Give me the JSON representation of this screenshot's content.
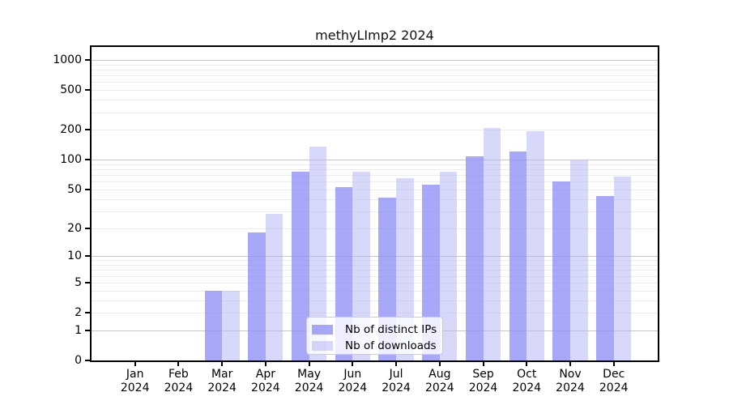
{
  "title": "methyLImp2 2024",
  "legend": {
    "items": [
      {
        "label": "Nb of distinct IPs"
      },
      {
        "label": "Nb of downloads"
      }
    ]
  },
  "chart_data": {
    "type": "bar",
    "title": "methyLImp2 2024",
    "categories": [
      "Jan 2024",
      "Feb 2024",
      "Mar 2024",
      "Apr 2024",
      "May 2024",
      "Jun 2024",
      "Jul 2024",
      "Aug 2024",
      "Sep 2024",
      "Oct 2024",
      "Nov 2024",
      "Dec 2024"
    ],
    "x_tick_line1": [
      "Jan",
      "Feb",
      "Mar",
      "Apr",
      "May",
      "Jun",
      "Jul",
      "Aug",
      "Sep",
      "Oct",
      "Nov",
      "Dec"
    ],
    "x_tick_line2": "2024",
    "series": [
      {
        "name": "Nb of distinct IPs",
        "values": [
          0,
          0,
          4,
          18,
          76,
          53,
          41,
          56,
          108,
          120,
          60,
          43
        ],
        "color": "rgba(144,144,246,0.78)"
      },
      {
        "name": "Nb of downloads",
        "values": [
          0,
          0,
          4,
          28,
          136,
          75,
          65,
          75,
          210,
          195,
          98,
          67
        ],
        "color": "rgba(178,178,248,0.5)"
      }
    ],
    "yscale": "log10(1+y)",
    "y_ticks": [
      0,
      1,
      2,
      5,
      10,
      20,
      50,
      100,
      200,
      500,
      1000
    ],
    "y_decade_ticks": [
      1,
      10,
      100,
      1000
    ],
    "y_minor_ticks": [
      3,
      4,
      6,
      7,
      8,
      9,
      30,
      40,
      60,
      70,
      80,
      90,
      300,
      400,
      600,
      700,
      800,
      900
    ],
    "ylim": [
      0,
      1380
    ],
    "grid": true,
    "grid_major_color": "#c6c6c6",
    "grid_minor_color": "#ececec",
    "legend_position": "lower center"
  }
}
